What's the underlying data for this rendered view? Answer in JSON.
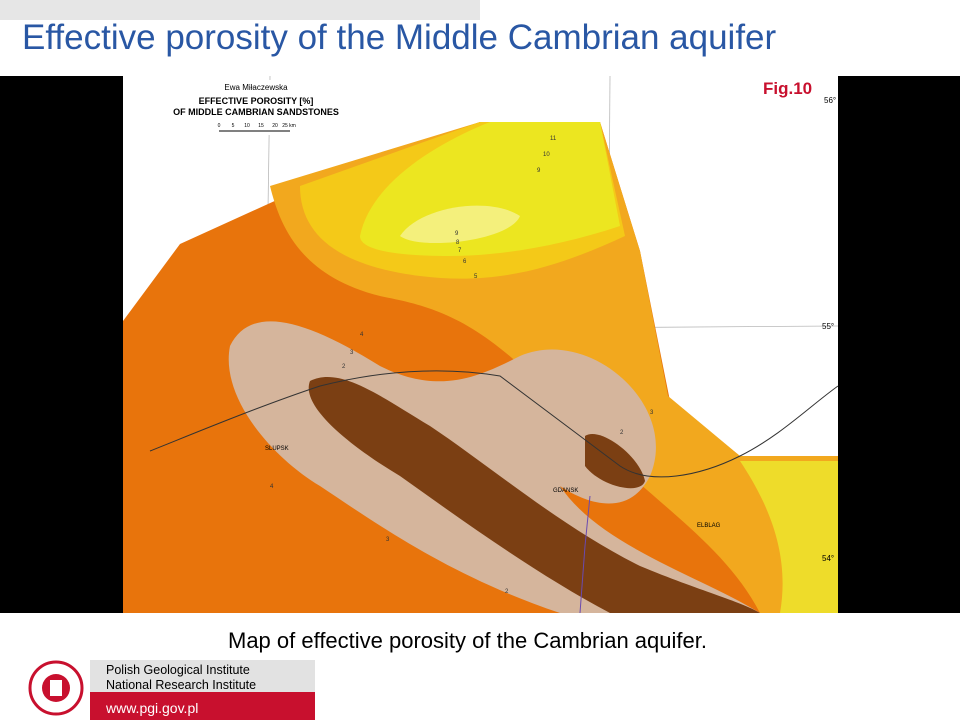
{
  "header": {
    "title": "Effective porosity of the Middle Cambrian aquifer"
  },
  "map": {
    "author": "Ewa Miłaczewska",
    "legend_title": "EFFECTIVE POROSITY [%]",
    "legend_subtitle": "OF MIDDLE CAMBRIAN SANDSTONES",
    "scale_labels": [
      "0",
      "5",
      "10",
      "15",
      "20",
      "25 km"
    ],
    "figure": "Fig.10",
    "latitudes": [
      "56°",
      "55°",
      "54°"
    ],
    "places": [
      "SLUPSK",
      "GDANSK",
      "ELBLAG"
    ],
    "contour_labels": [
      "11",
      "10",
      "9",
      "9",
      "8",
      "7",
      "6",
      "5",
      "4",
      "3",
      "2",
      "4",
      "3",
      "2",
      "3",
      "2"
    ]
  },
  "caption": "Map of effective porosity of the Cambrian aquifer.",
  "footer": {
    "institute_line1": "Polish Geological Institute",
    "institute_line2": "National Research Institute",
    "url": "www.pgi.gov.pl"
  }
}
